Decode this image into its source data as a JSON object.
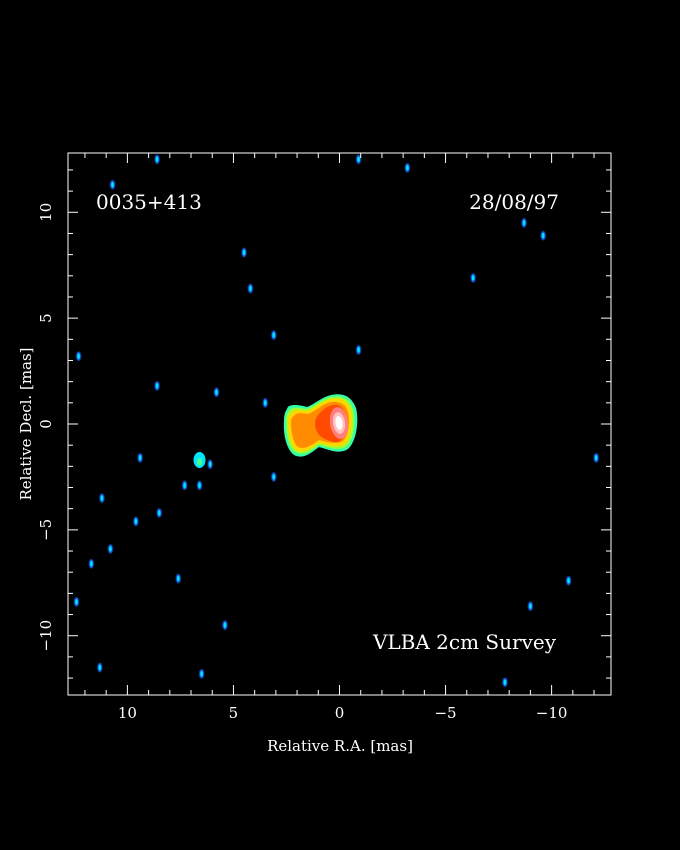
{
  "chart_data": {
    "type": "heatmap",
    "source_name": "0035+413",
    "date": "28/08/97",
    "survey": "VLBA 2cm Survey",
    "xlabel": "Relative R.A. [mas]",
    "ylabel": "Relative Decl. [mas]",
    "xlim": [
      12.8,
      -12.8
    ],
    "ylim": [
      -12.8,
      12.8
    ],
    "x_ticks": [
      10,
      5,
      0,
      -5,
      -10
    ],
    "y_ticks": [
      10,
      5,
      0,
      -5,
      -10
    ],
    "x_tick_labels": [
      "10",
      "5",
      "0",
      "−5",
      "−10"
    ],
    "y_tick_labels": [
      "10",
      "5",
      "0",
      "−5",
      "−10"
    ],
    "grid": false,
    "colormap": [
      "#0000cc",
      "#1a6bff",
      "#00e5ff",
      "#4dff88",
      "#ffff00",
      "#ff9900",
      "#ff4000",
      "#ff8080",
      "#ffffff"
    ],
    "core": {
      "ra": 0.0,
      "dec": 0.0
    },
    "jet_extent": {
      "ra_from": 2.3,
      "ra_to": -0.7
    },
    "noise_features": [
      {
        "ra": 10.7,
        "dec": 11.3
      },
      {
        "ra": 8.6,
        "dec": 12.5
      },
      {
        "ra": -0.9,
        "dec": 12.5
      },
      {
        "ra": -3.2,
        "dec": 12.1
      },
      {
        "ra": 4.5,
        "dec": 8.1
      },
      {
        "ra": 4.2,
        "dec": 6.4
      },
      {
        "ra": -8.7,
        "dec": 9.5
      },
      {
        "ra": -9.6,
        "dec": 8.9
      },
      {
        "ra": -6.3,
        "dec": 6.9
      },
      {
        "ra": 12.3,
        "dec": 3.2
      },
      {
        "ra": 3.1,
        "dec": 4.2
      },
      {
        "ra": -0.9,
        "dec": 3.5
      },
      {
        "ra": 5.8,
        "dec": 1.5
      },
      {
        "ra": 3.5,
        "dec": 1.0
      },
      {
        "ra": 8.6,
        "dec": 1.8
      },
      {
        "ra": 6.6,
        "dec": -1.6
      },
      {
        "ra": 6.1,
        "dec": -1.9
      },
      {
        "ra": 9.4,
        "dec": -1.6
      },
      {
        "ra": 7.3,
        "dec": -2.9
      },
      {
        "ra": 6.6,
        "dec": -2.9
      },
      {
        "ra": 3.1,
        "dec": -2.5
      },
      {
        "ra": 11.2,
        "dec": -3.5
      },
      {
        "ra": 9.6,
        "dec": -4.6
      },
      {
        "ra": 8.5,
        "dec": -4.2
      },
      {
        "ra": 11.7,
        "dec": -6.6
      },
      {
        "ra": 10.8,
        "dec": -5.9
      },
      {
        "ra": 7.6,
        "dec": -7.3
      },
      {
        "ra": 12.4,
        "dec": -8.4
      },
      {
        "ra": 5.4,
        "dec": -9.5
      },
      {
        "ra": 11.3,
        "dec": -11.5
      },
      {
        "ra": 6.5,
        "dec": -11.8
      },
      {
        "ra": -12.1,
        "dec": -1.6
      },
      {
        "ra": -10.8,
        "dec": -7.4
      },
      {
        "ra": -9.0,
        "dec": -8.6
      },
      {
        "ra": -7.8,
        "dec": -12.2
      }
    ]
  }
}
